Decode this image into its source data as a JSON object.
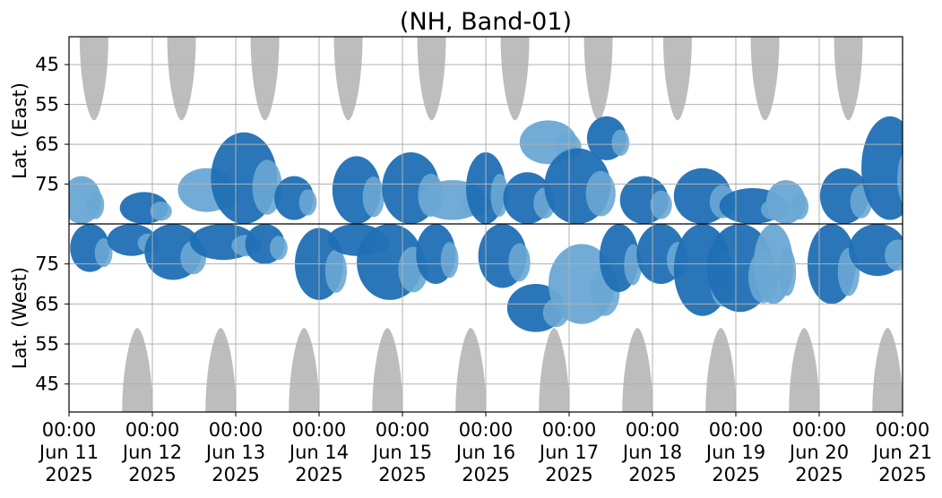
{
  "chart_data": {
    "type": "heatmap",
    "title": "(NH, Band-01)",
    "ylabel_east": "Lat. (East)",
    "ylabel_west": "Lat. (West)",
    "x_range_days": [
      0,
      10
    ],
    "x_ticks": [
      {
        "day": 0,
        "time": "00:00",
        "date": "Jun 11",
        "year": "2025"
      },
      {
        "day": 1,
        "time": "00:00",
        "date": "Jun 12",
        "year": "2025"
      },
      {
        "day": 2,
        "time": "00:00",
        "date": "Jun 13",
        "year": "2025"
      },
      {
        "day": 3,
        "time": "00:00",
        "date": "Jun 14",
        "year": "2025"
      },
      {
        "day": 4,
        "time": "00:00",
        "date": "Jun 15",
        "year": "2025"
      },
      {
        "day": 5,
        "time": "00:00",
        "date": "Jun 16",
        "year": "2025"
      },
      {
        "day": 6,
        "time": "00:00",
        "date": "Jun 17",
        "year": "2025"
      },
      {
        "day": 7,
        "time": "00:00",
        "date": "Jun 18",
        "year": "2025"
      },
      {
        "day": 8,
        "time": "00:00",
        "date": "Jun 19",
        "year": "2025"
      },
      {
        "day": 9,
        "time": "00:00",
        "date": "Jun 20",
        "year": "2025"
      },
      {
        "day": 10,
        "time": "00:00",
        "date": "Jun 21",
        "year": "2025"
      }
    ],
    "east_yticks": [
      "45",
      "55",
      "65",
      "75"
    ],
    "west_yticks": [
      "75",
      "65",
      "55",
      "45"
    ],
    "east_lat_range": [
      38,
      85
    ],
    "west_lat_range": [
      85,
      38
    ],
    "grid": true,
    "colors": {
      "strong": "#1f6fb4",
      "weak": "#6aa8d4",
      "dark_gap": "#bdbdbd",
      "grid": "#b0b0b0"
    },
    "east_gray_regions_center_day": [
      0.3,
      1.35,
      2.35,
      3.35,
      4.35,
      5.35,
      6.35,
      7.3,
      8.35,
      9.35
    ],
    "west_gray_regions_center_day": [
      0.82,
      1.82,
      2.82,
      3.82,
      4.82,
      5.82,
      6.82,
      7.82,
      8.82,
      9.82
    ],
    "east_blobs": [
      {
        "day": 0.15,
        "lat_min": 73,
        "lat_max": 85,
        "level": "weak"
      },
      {
        "day": 0.9,
        "lat_min": 77,
        "lat_max": 85,
        "level": "strong"
      },
      {
        "day": 1.65,
        "lat_min": 71,
        "lat_max": 82,
        "level": "weak"
      },
      {
        "day": 2.1,
        "lat_min": 62,
        "lat_max": 85,
        "level": "strong"
      },
      {
        "day": 2.7,
        "lat_min": 73,
        "lat_max": 84,
        "level": "strong"
      },
      {
        "day": 3.45,
        "lat_min": 68,
        "lat_max": 85,
        "level": "strong"
      },
      {
        "day": 4.1,
        "lat_min": 67,
        "lat_max": 85,
        "level": "strong"
      },
      {
        "day": 4.6,
        "lat_min": 74,
        "lat_max": 84,
        "level": "weak"
      },
      {
        "day": 5.0,
        "lat_min": 67,
        "lat_max": 85,
        "level": "strong"
      },
      {
        "day": 5.5,
        "lat_min": 72,
        "lat_max": 85,
        "level": "strong"
      },
      {
        "day": 5.75,
        "lat_min": 59,
        "lat_max": 70,
        "level": "weak"
      },
      {
        "day": 6.1,
        "lat_min": 66,
        "lat_max": 85,
        "level": "strong"
      },
      {
        "day": 6.45,
        "lat_min": 58,
        "lat_max": 69,
        "level": "strong"
      },
      {
        "day": 6.9,
        "lat_min": 73,
        "lat_max": 85,
        "level": "strong"
      },
      {
        "day": 7.6,
        "lat_min": 71,
        "lat_max": 85,
        "level": "strong"
      },
      {
        "day": 8.2,
        "lat_min": 76,
        "lat_max": 85,
        "level": "strong"
      },
      {
        "day": 8.6,
        "lat_min": 74,
        "lat_max": 85,
        "level": "weak"
      },
      {
        "day": 9.3,
        "lat_min": 71,
        "lat_max": 85,
        "level": "strong"
      },
      {
        "day": 9.85,
        "lat_min": 58,
        "lat_max": 84,
        "level": "strong"
      }
    ],
    "west_blobs": [
      {
        "day": 0.25,
        "lat_min": 73,
        "lat_max": 85,
        "level": "strong"
      },
      {
        "day": 0.75,
        "lat_min": 77,
        "lat_max": 85,
        "level": "strong"
      },
      {
        "day": 1.25,
        "lat_min": 71,
        "lat_max": 85,
        "level": "strong"
      },
      {
        "day": 1.85,
        "lat_min": 76,
        "lat_max": 85,
        "level": "strong"
      },
      {
        "day": 2.35,
        "lat_min": 75,
        "lat_max": 85,
        "level": "strong"
      },
      {
        "day": 3.0,
        "lat_min": 66,
        "lat_max": 84,
        "level": "strong"
      },
      {
        "day": 3.45,
        "lat_min": 77,
        "lat_max": 85,
        "level": "strong"
      },
      {
        "day": 3.85,
        "lat_min": 66,
        "lat_max": 85,
        "level": "strong"
      },
      {
        "day": 4.4,
        "lat_min": 70,
        "lat_max": 85,
        "level": "strong"
      },
      {
        "day": 5.2,
        "lat_min": 69,
        "lat_max": 85,
        "level": "strong"
      },
      {
        "day": 5.6,
        "lat_min": 58,
        "lat_max": 70,
        "level": "strong"
      },
      {
        "day": 6.15,
        "lat_min": 60,
        "lat_max": 80,
        "level": "weak"
      },
      {
        "day": 6.6,
        "lat_min": 68,
        "lat_max": 85,
        "level": "strong"
      },
      {
        "day": 7.1,
        "lat_min": 70,
        "lat_max": 85,
        "level": "strong"
      },
      {
        "day": 7.6,
        "lat_min": 62,
        "lat_max": 85,
        "level": "strong"
      },
      {
        "day": 8.05,
        "lat_min": 63,
        "lat_max": 85,
        "level": "strong"
      },
      {
        "day": 8.45,
        "lat_min": 65,
        "lat_max": 85,
        "level": "weak"
      },
      {
        "day": 9.15,
        "lat_min": 65,
        "lat_max": 85,
        "level": "strong"
      },
      {
        "day": 9.7,
        "lat_min": 72,
        "lat_max": 85,
        "level": "strong"
      }
    ]
  }
}
